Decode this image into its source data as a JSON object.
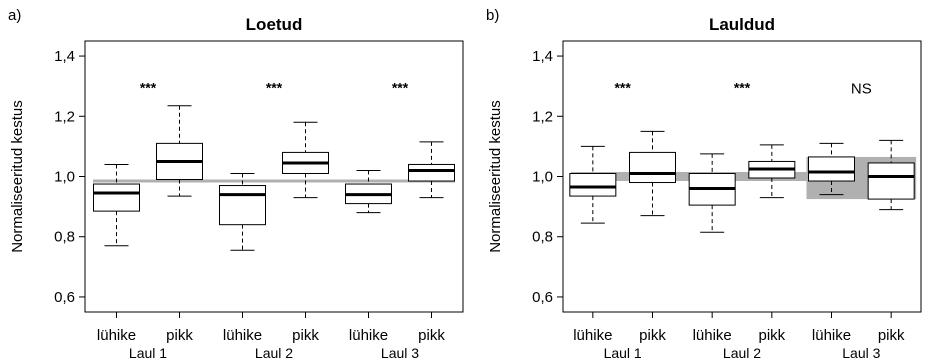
{
  "chart_data": [
    {
      "type": "boxplot",
      "panel_label": "a)",
      "title": "Loetud",
      "ylabel": "Normaliseeritud kestus",
      "ylim": [
        0.55,
        1.45
      ],
      "yticks": [
        "0,6",
        "0,8",
        "1,0",
        "1,2",
        "1,4"
      ],
      "reference_line": 0.985,
      "groups": [
        {
          "name": "Laul 1",
          "significance": "***",
          "boxes": [
            {
              "label": "lühike",
              "min": 0.77,
              "q1": 0.885,
              "median": 0.945,
              "q3": 0.975,
              "max": 1.04
            },
            {
              "label": "pikk",
              "min": 0.935,
              "q1": 0.99,
              "median": 1.05,
              "q3": 1.11,
              "max": 1.235
            }
          ]
        },
        {
          "name": "Laul 2",
          "significance": "***",
          "boxes": [
            {
              "label": "lühike",
              "min": 0.755,
              "q1": 0.84,
              "median": 0.94,
              "q3": 0.97,
              "max": 1.01
            },
            {
              "label": "pikk",
              "min": 0.93,
              "q1": 1.01,
              "median": 1.045,
              "q3": 1.08,
              "max": 1.18
            }
          ]
        },
        {
          "name": "Laul 3",
          "significance": "***",
          "boxes": [
            {
              "label": "lühike",
              "min": 0.88,
              "q1": 0.91,
              "median": 0.94,
              "q3": 0.975,
              "max": 1.02
            },
            {
              "label": "pikk",
              "min": 0.93,
              "q1": 0.985,
              "median": 1.02,
              "q3": 1.04,
              "max": 1.115
            }
          ]
        }
      ]
    },
    {
      "type": "boxplot",
      "panel_label": "b)",
      "title": "Lauldud",
      "ylabel": "Normaliseeritud kestus",
      "ylim": [
        0.55,
        1.45
      ],
      "yticks": [
        "0,6",
        "0,8",
        "1,0",
        "1,2",
        "1,4"
      ],
      "reference_band": {
        "low": 0.985,
        "high": 1.015
      },
      "highlight_band": {
        "group": 2,
        "low": 0.925,
        "high": 1.065
      },
      "groups": [
        {
          "name": "Laul 1",
          "significance": "***",
          "boxes": [
            {
              "label": "lühike",
              "min": 0.845,
              "q1": 0.935,
              "median": 0.965,
              "q3": 1.01,
              "max": 1.1
            },
            {
              "label": "pikk",
              "min": 0.87,
              "q1": 0.98,
              "median": 1.01,
              "q3": 1.08,
              "max": 1.15
            }
          ]
        },
        {
          "name": "Laul 2",
          "significance": "***",
          "boxes": [
            {
              "label": "lühike",
              "min": 0.815,
              "q1": 0.905,
              "median": 0.96,
              "q3": 1.01,
              "max": 1.075
            },
            {
              "label": "pikk",
              "min": 0.93,
              "q1": 0.995,
              "median": 1.025,
              "q3": 1.05,
              "max": 1.105
            }
          ]
        },
        {
          "name": "Laul 3",
          "significance": "NS",
          "boxes": [
            {
              "label": "lühike",
              "min": 0.94,
              "q1": 0.985,
              "median": 1.015,
              "q3": 1.065,
              "max": 1.11
            },
            {
              "label": "pikk",
              "min": 0.89,
              "q1": 0.925,
              "median": 1.0,
              "q3": 1.045,
              "max": 1.12
            }
          ]
        }
      ]
    }
  ],
  "colors": {
    "box": "#ffffff",
    "stroke": "#000000",
    "reference": "#b0b0b0"
  }
}
